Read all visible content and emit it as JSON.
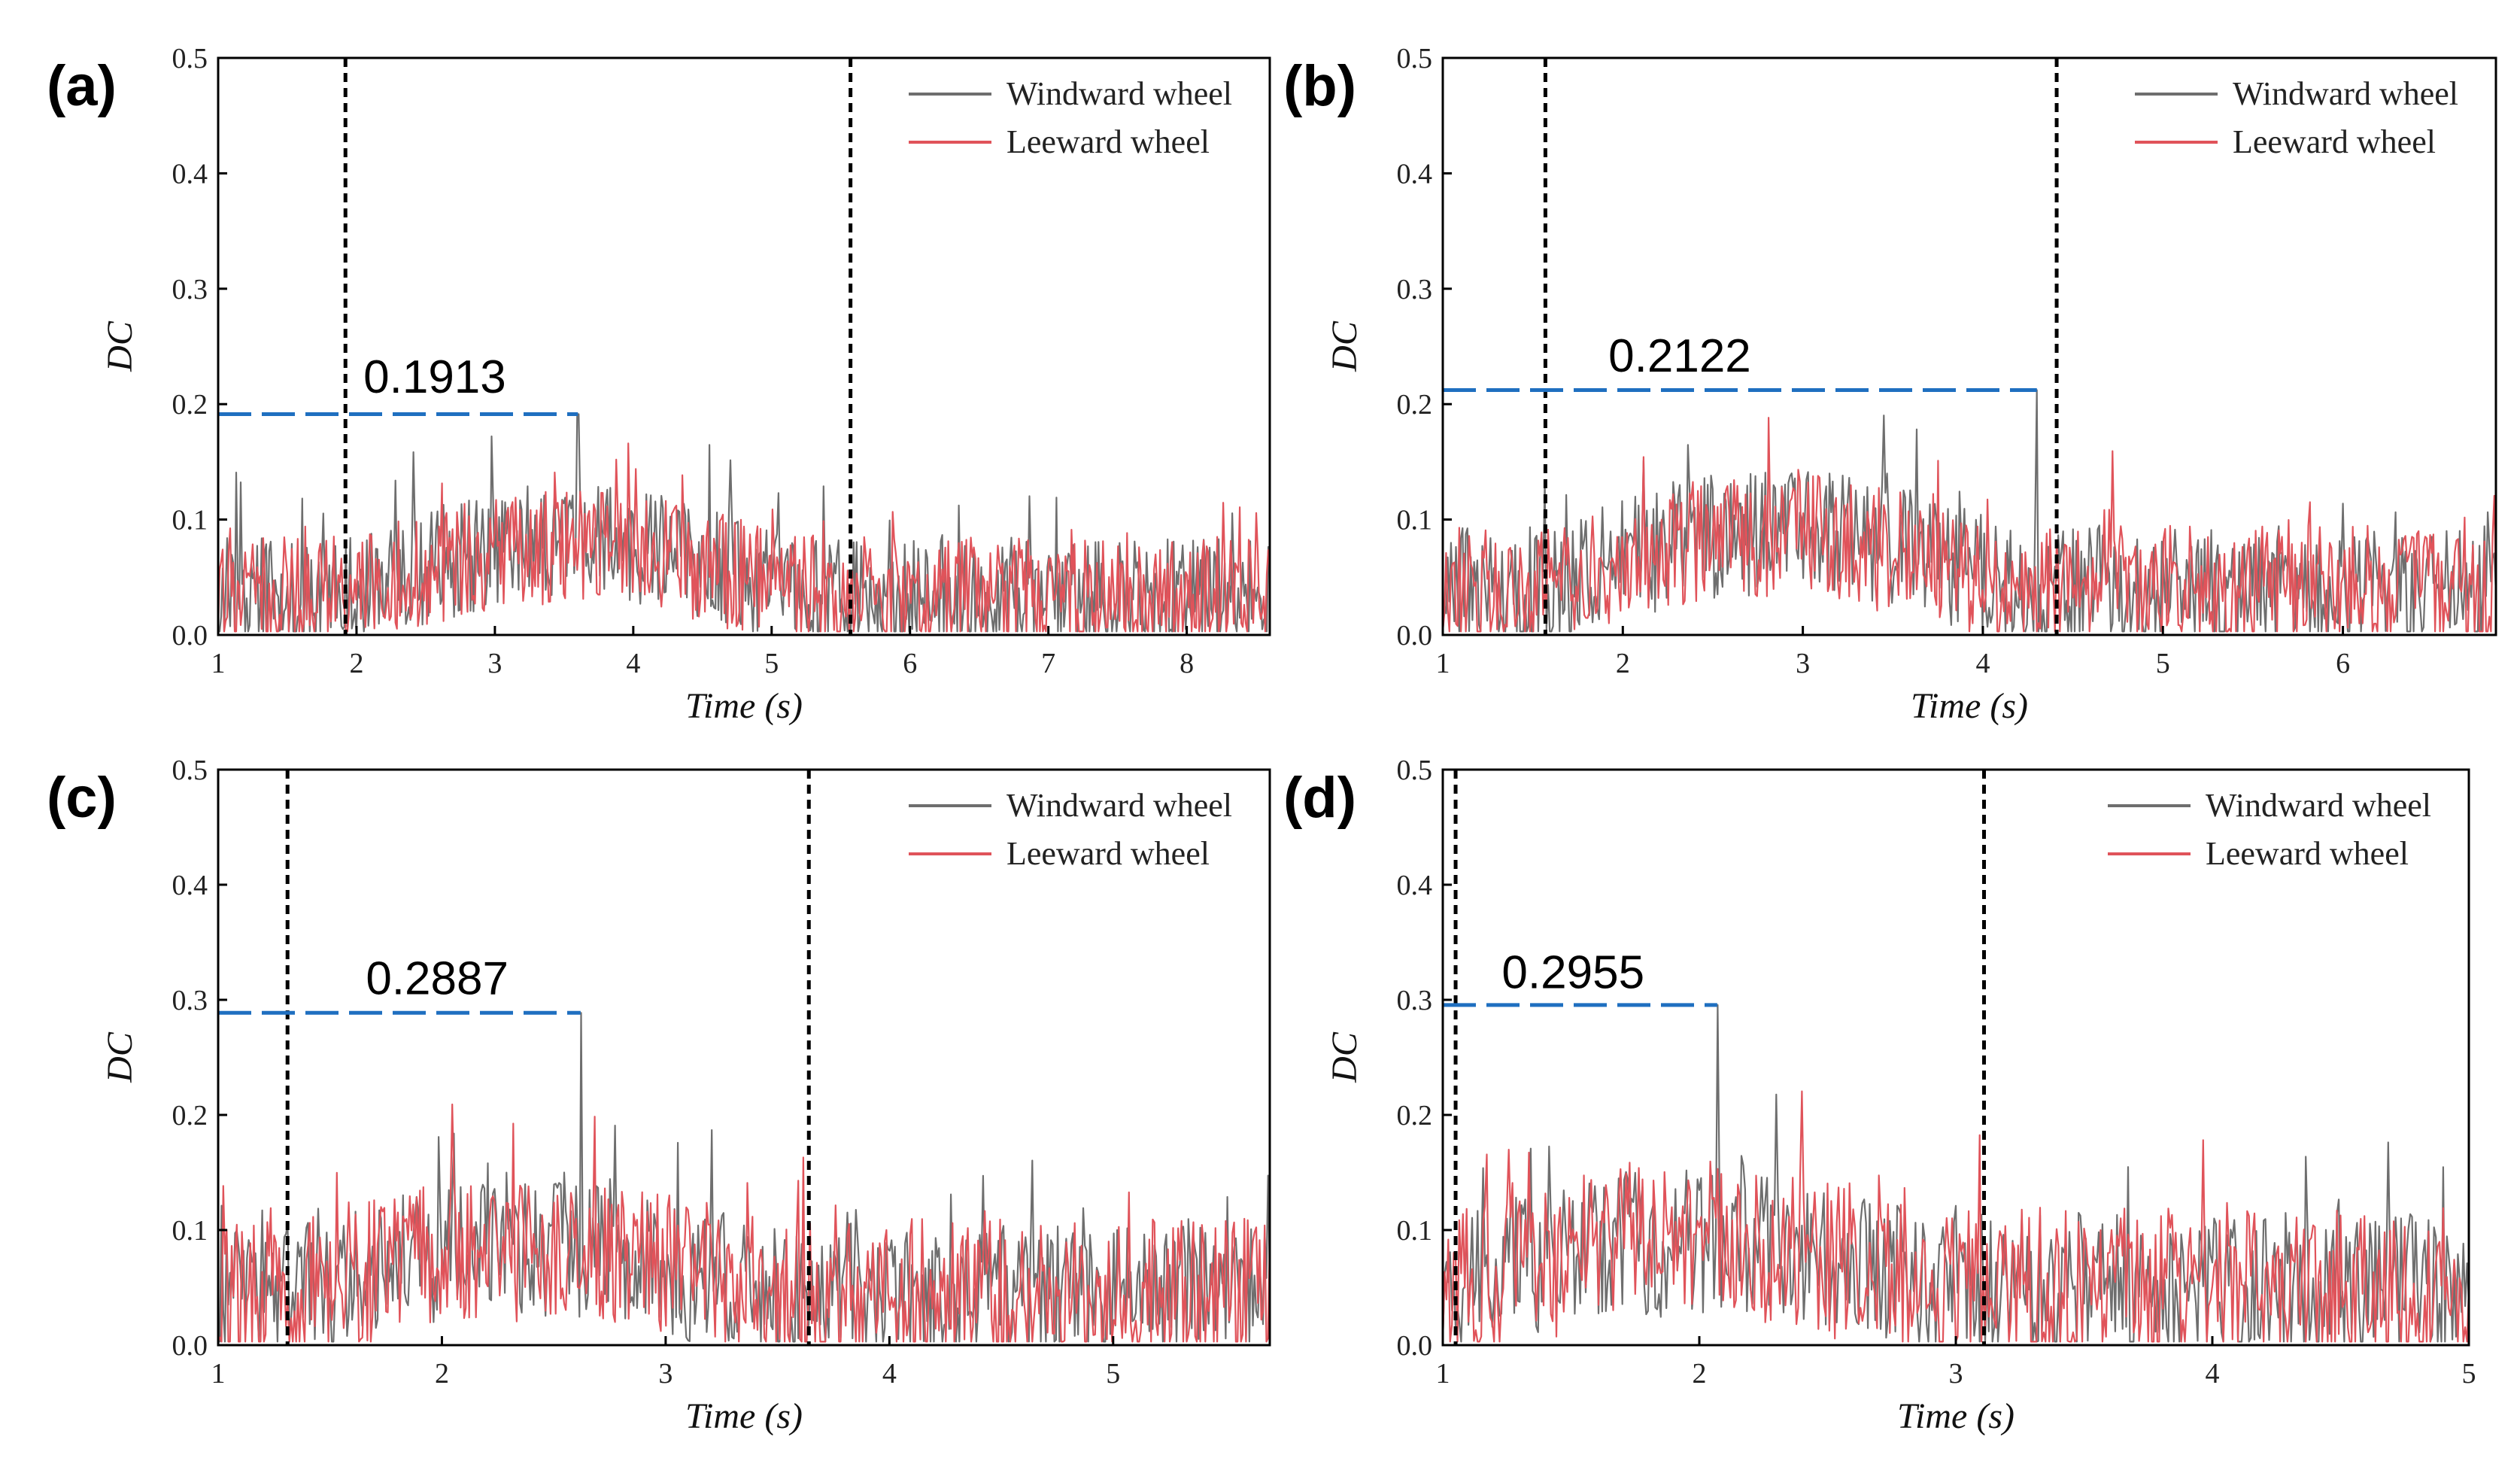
{
  "colors": {
    "windward": "#6e6e6e",
    "leeward": "#e0535a",
    "max_line": "#1f6fc0",
    "boundary": "#000000",
    "axis": "#000000"
  },
  "chart_data": [
    {
      "type": "line",
      "panel_label": "(a)",
      "xlabel": "Time (s)",
      "ylabel": "DC",
      "xlim": [
        1,
        8.6
      ],
      "ylim": [
        0,
        0.5
      ],
      "xticks": [
        1,
        2,
        3,
        4,
        5,
        6,
        7,
        8
      ],
      "yticks": [
        0.0,
        0.1,
        0.2,
        0.3,
        0.4,
        0.5
      ],
      "xtick_labels": [
        "1",
        "2",
        "3",
        "4",
        "5",
        "6",
        "7",
        "8"
      ],
      "ytick_labels": [
        "0.0",
        "0.1",
        "0.2",
        "0.3",
        "0.4",
        "0.5"
      ],
      "series": [
        {
          "name": "Windward wheel",
          "color": "#6e6e6e",
          "profile": {
            "base_before": 0.035,
            "base_during": 0.08,
            "base_after": 0.035,
            "amp": 0.05,
            "n": 700
          }
        },
        {
          "name": "Leeward wheel",
          "color": "#e0535a",
          "profile": {
            "base_before": 0.035,
            "base_during": 0.075,
            "base_after": 0.035,
            "amp": 0.05,
            "n": 700
          }
        }
      ],
      "boundaries": [
        1.92,
        5.57
      ],
      "max_value": 0.1913,
      "max_label": "0.1913",
      "max_line": {
        "x_start": 1,
        "x_end": 3.6,
        "y": 0.1913
      },
      "max_label_at": {
        "x": 2.05,
        "y": 0.21
      },
      "spike": {
        "x": 3.6,
        "y": 0.1913
      },
      "legend": {
        "position": "top-right",
        "entries": [
          "Windward wheel",
          "Leeward wheel"
        ]
      }
    },
    {
      "type": "line",
      "panel_label": "(b)",
      "xlabel": "Time (s)",
      "ylabel": "DC",
      "xlim": [
        1,
        6.85
      ],
      "ylim": [
        0,
        0.5
      ],
      "xticks": [
        1,
        2,
        3,
        4,
        5,
        6
      ],
      "yticks": [
        0.0,
        0.1,
        0.2,
        0.3,
        0.4,
        0.5
      ],
      "xtick_labels": [
        "1",
        "2",
        "3",
        "4",
        "5",
        "6"
      ],
      "ytick_labels": [
        "0.0",
        "0.1",
        "0.2",
        "0.3",
        "0.4",
        "0.5"
      ],
      "series": [
        {
          "name": "Windward wheel",
          "color": "#6e6e6e",
          "profile": {
            "base_before": 0.04,
            "base_during": 0.09,
            "base_after": 0.04,
            "amp": 0.055,
            "n": 640
          }
        },
        {
          "name": "Leeward wheel",
          "color": "#e0535a",
          "profile": {
            "base_before": 0.04,
            "base_during": 0.085,
            "base_after": 0.04,
            "amp": 0.055,
            "n": 640
          }
        }
      ],
      "boundaries": [
        1.57,
        4.41
      ],
      "max_value": 0.2122,
      "max_label": "0.2122",
      "max_line": {
        "x_start": 1,
        "x_end": 4.3,
        "y": 0.2122
      },
      "max_label_at": {
        "x": 1.92,
        "y": 0.228
      },
      "spike": {
        "x": 4.3,
        "y": 0.2122
      },
      "legend": {
        "position": "top-right",
        "entries": [
          "Windward wheel",
          "Leeward wheel"
        ]
      }
    },
    {
      "type": "line",
      "panel_label": "(c)",
      "xlabel": "Time (s)",
      "ylabel": "DC",
      "xlim": [
        1,
        5.7
      ],
      "ylim": [
        0,
        0.5
      ],
      "xticks": [
        1,
        2,
        3,
        4,
        5
      ],
      "yticks": [
        0.0,
        0.1,
        0.2,
        0.3,
        0.4,
        0.5
      ],
      "xtick_labels": [
        "1",
        "2",
        "3",
        "4",
        "5"
      ],
      "ytick_labels": [
        "0.0",
        "0.1",
        "0.2",
        "0.3",
        "0.4",
        "0.5"
      ],
      "series": [
        {
          "name": "Windward wheel",
          "color": "#6e6e6e",
          "profile": {
            "base_before": 0.045,
            "base_during": 0.085,
            "base_after": 0.045,
            "amp": 0.06,
            "n": 620
          }
        },
        {
          "name": "Leeward wheel",
          "color": "#e0535a",
          "profile": {
            "base_before": 0.045,
            "base_during": 0.085,
            "base_after": 0.045,
            "amp": 0.065,
            "n": 620
          }
        }
      ],
      "boundaries": [
        1.31,
        3.64
      ],
      "max_value": 0.2887,
      "max_label": "0.2887",
      "max_line": {
        "x_start": 1,
        "x_end": 2.62,
        "y": 0.2887
      },
      "max_label_at": {
        "x": 1.66,
        "y": 0.305
      },
      "spike": {
        "x": 2.62,
        "y": 0.2887
      },
      "legend": {
        "position": "top-right",
        "entries": [
          "Windward wheel",
          "Leeward wheel"
        ]
      }
    },
    {
      "type": "line",
      "panel_label": "(d)",
      "xlabel": "Time (s)",
      "ylabel": "DC",
      "xlim": [
        1,
        5.0
      ],
      "ylim": [
        0,
        0.5
      ],
      "xticks": [
        1,
        2,
        3,
        4,
        5
      ],
      "yticks": [
        0.0,
        0.1,
        0.2,
        0.3,
        0.4,
        0.5
      ],
      "xtick_labels": [
        "1",
        "2",
        "3",
        "4",
        "5"
      ],
      "ytick_labels": [
        "0.0",
        "0.1",
        "0.2",
        "0.3",
        "0.4",
        "0.5"
      ],
      "series": [
        {
          "name": "Windward wheel",
          "color": "#6e6e6e",
          "profile": {
            "base_before": 0.05,
            "base_during": 0.09,
            "base_after": 0.05,
            "amp": 0.065,
            "n": 560
          }
        },
        {
          "name": "Leeward wheel",
          "color": "#e0535a",
          "profile": {
            "base_before": 0.05,
            "base_during": 0.09,
            "base_after": 0.05,
            "amp": 0.07,
            "n": 560
          }
        }
      ],
      "boundaries": [
        1.05,
        3.11
      ],
      "max_value": 0.2955,
      "max_label": "0.2955",
      "max_line": {
        "x_start": 1,
        "x_end": 2.07,
        "y": 0.2955
      },
      "max_label_at": {
        "x": 1.23,
        "y": 0.31
      },
      "spike": {
        "x": 2.07,
        "y": 0.2955
      },
      "legend": {
        "position": "top-right",
        "entries": [
          "Windward wheel",
          "Leeward wheel"
        ]
      }
    }
  ]
}
